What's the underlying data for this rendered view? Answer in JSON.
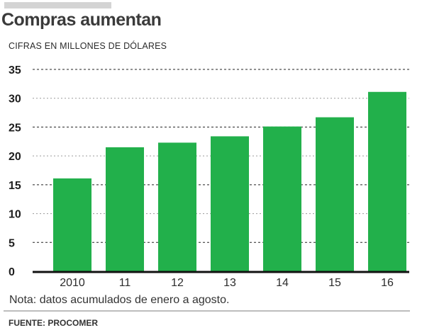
{
  "header": {
    "title": "Compras aumentan",
    "subtitle": "CIFRAS EN MILLONES DE DÓLARES"
  },
  "footer": {
    "note": "Nota: datos acumulados de enero a agosto.",
    "source": "FUENTE: PROCOMER"
  },
  "colors": {
    "bar": "#22b04b",
    "grid": "#222222",
    "axis": "#111111"
  },
  "chart_data": {
    "type": "bar",
    "categories": [
      "2010",
      "11",
      "12",
      "13",
      "14",
      "15",
      "16"
    ],
    "values": [
      16.1,
      21.5,
      22.3,
      23.4,
      25.1,
      26.7,
      31.1
    ],
    "title": "Compras aumentan",
    "xlabel": "",
    "ylabel": "CIFRAS EN MILLONES DE DÓLARES",
    "ylim": [
      0,
      35
    ],
    "yticks": [
      "0",
      "5",
      "10",
      "15",
      "20",
      "25",
      "30",
      "35"
    ],
    "grid": true,
    "legend": "none"
  }
}
